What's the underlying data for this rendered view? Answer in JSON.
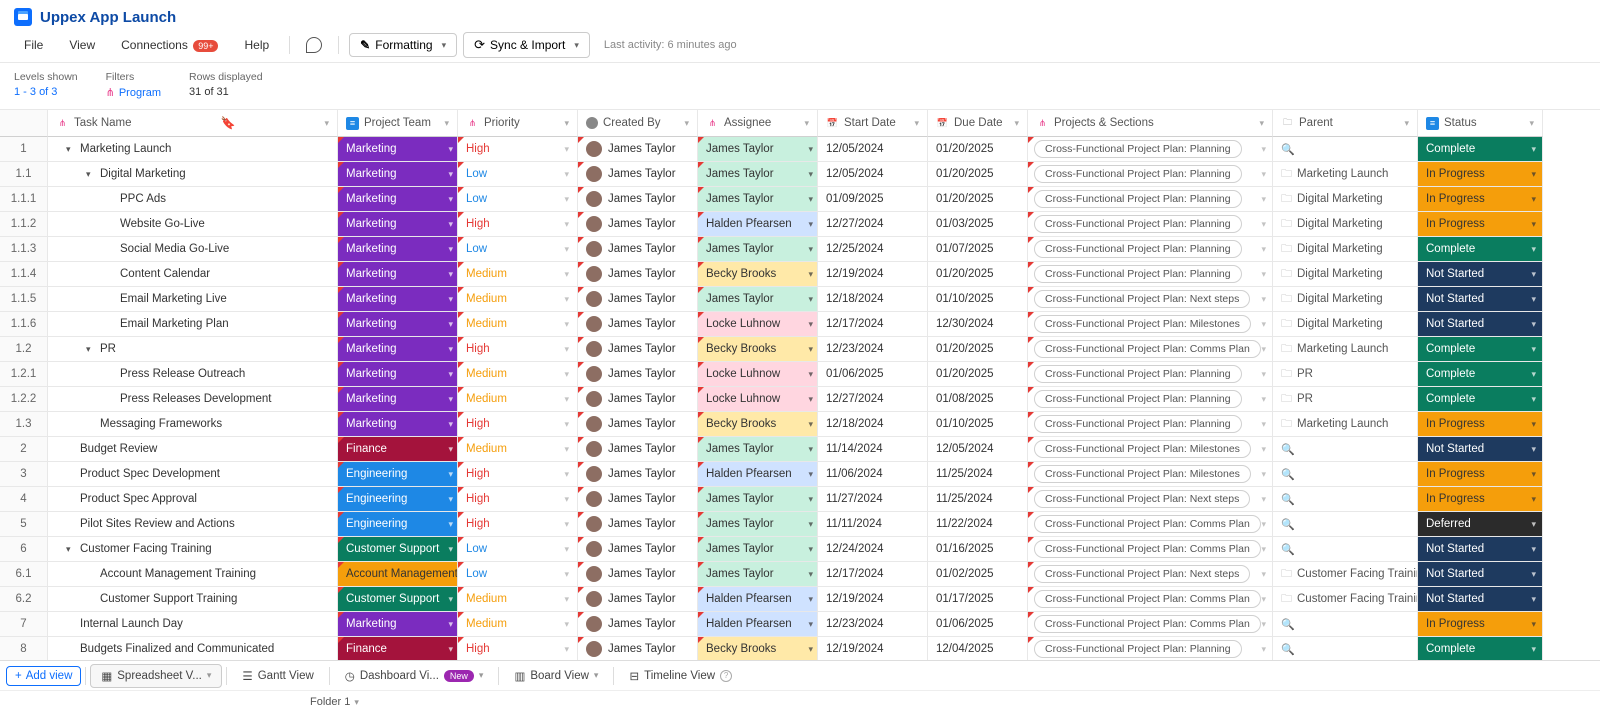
{
  "title": "Uppex App Launch",
  "menu": {
    "file": "File",
    "view": "View",
    "connections": "Connections",
    "connections_badge": "99+",
    "help": "Help",
    "formatting": "Formatting",
    "sync": "Sync & Import",
    "last_activity": "Last activity:  6 minutes ago"
  },
  "toolbar": {
    "levels_label": "Levels shown",
    "levels_value": "1 - 3 of 3",
    "filters_label": "Filters",
    "filters_value": "Program",
    "rows_label": "Rows displayed",
    "rows_value": "31 of 31"
  },
  "columns": {
    "task": "Task Name",
    "team": "Project Team",
    "priority": "Priority",
    "created": "Created By",
    "assignee": "Assignee",
    "start": "Start Date",
    "due": "Due Date",
    "projects": "Projects & Sections",
    "parent": "Parent",
    "status": "Status"
  },
  "team_colors": {
    "Marketing": "#7b2cbf",
    "Finance": "#a4133c",
    "Engineering": "#1e88e5",
    "Customer Support": "#0a7d5f",
    "Account Management": "#f59e0b"
  },
  "priority_colors": {
    "High": "#e53935",
    "Medium": "#f59e0b",
    "Low": "#1e88e5"
  },
  "assignee_colors": {
    "James Taylor": "#c8f0de",
    "Halden Pfearsen": "#cfe2ff",
    "Becky Brooks": "#ffe9a8",
    "Locke Luhnow": "#ffd6e0"
  },
  "status_colors": {
    "Complete": "#0a7d5f",
    "In Progress": "#f59e0b",
    "Not Started": "#1e3a5f",
    "Deferred": "#2b2b2b"
  },
  "rows": [
    {
      "num": "1",
      "indent": 0,
      "chev": "▾",
      "task": "Marketing Launch",
      "team": "Marketing",
      "priority": "High",
      "created": "James Taylor",
      "assignee": "James Taylor",
      "start": "12/05/2024",
      "due": "01/20/2025",
      "project": "Cross-Functional Project Plan: Planning",
      "parent": "",
      "status": "Complete"
    },
    {
      "num": "1.1",
      "indent": 1,
      "chev": "▾",
      "task": "Digital Marketing",
      "team": "Marketing",
      "priority": "Low",
      "created": "James Taylor",
      "assignee": "James Taylor",
      "start": "12/05/2024",
      "due": "01/20/2025",
      "project": "Cross-Functional Project Plan: Planning",
      "parent": "Marketing Launch",
      "status": "In Progress"
    },
    {
      "num": "1.1.1",
      "indent": 2,
      "chev": "",
      "task": "PPC Ads",
      "team": "Marketing",
      "priority": "Low",
      "created": "James Taylor",
      "assignee": "James Taylor",
      "start": "01/09/2025",
      "due": "01/20/2025",
      "project": "Cross-Functional Project Plan: Planning",
      "parent": "Digital Marketing",
      "status": "In Progress"
    },
    {
      "num": "1.1.2",
      "indent": 2,
      "chev": "",
      "task": "Website Go-Live",
      "team": "Marketing",
      "priority": "High",
      "created": "James Taylor",
      "assignee": "Halden Pfearsen",
      "start": "12/27/2024",
      "due": "01/03/2025",
      "project": "Cross-Functional Project Plan: Planning",
      "parent": "Digital Marketing",
      "status": "In Progress"
    },
    {
      "num": "1.1.3",
      "indent": 2,
      "chev": "",
      "task": "Social Media Go-Live",
      "team": "Marketing",
      "priority": "Low",
      "created": "James Taylor",
      "assignee": "James Taylor",
      "start": "12/25/2024",
      "due": "01/07/2025",
      "project": "Cross-Functional Project Plan: Planning",
      "parent": "Digital Marketing",
      "status": "Complete"
    },
    {
      "num": "1.1.4",
      "indent": 2,
      "chev": "",
      "task": "Content Calendar",
      "team": "Marketing",
      "priority": "Medium",
      "created": "James Taylor",
      "assignee": "Becky Brooks",
      "start": "12/19/2024",
      "due": "01/20/2025",
      "project": "Cross-Functional Project Plan: Planning",
      "parent": "Digital Marketing",
      "status": "Not Started"
    },
    {
      "num": "1.1.5",
      "indent": 2,
      "chev": "",
      "task": "Email Marketing Live",
      "team": "Marketing",
      "priority": "Medium",
      "created": "James Taylor",
      "assignee": "James Taylor",
      "start": "12/18/2024",
      "due": "01/10/2025",
      "project": "Cross-Functional Project Plan: Next steps",
      "parent": "Digital Marketing",
      "status": "Not Started"
    },
    {
      "num": "1.1.6",
      "indent": 2,
      "chev": "",
      "task": "Email Marketing Plan",
      "team": "Marketing",
      "priority": "Medium",
      "created": "James Taylor",
      "assignee": "Locke Luhnow",
      "start": "12/17/2024",
      "due": "12/30/2024",
      "project": "Cross-Functional Project Plan: Milestones",
      "parent": "Digital Marketing",
      "status": "Not Started"
    },
    {
      "num": "1.2",
      "indent": 1,
      "chev": "▾",
      "task": "PR",
      "team": "Marketing",
      "priority": "High",
      "created": "James Taylor",
      "assignee": "Becky Brooks",
      "start": "12/23/2024",
      "due": "01/20/2025",
      "project": "Cross-Functional Project Plan: Comms Plan",
      "parent": "Marketing Launch",
      "status": "Complete"
    },
    {
      "num": "1.2.1",
      "indent": 2,
      "chev": "",
      "task": "Press Release Outreach",
      "team": "Marketing",
      "priority": "Medium",
      "created": "James Taylor",
      "assignee": "Locke Luhnow",
      "start": "01/06/2025",
      "due": "01/20/2025",
      "project": "Cross-Functional Project Plan: Planning",
      "parent": "PR",
      "status": "Complete"
    },
    {
      "num": "1.2.2",
      "indent": 2,
      "chev": "",
      "task": "Press Releases Development",
      "team": "Marketing",
      "priority": "Medium",
      "created": "James Taylor",
      "assignee": "Locke Luhnow",
      "start": "12/27/2024",
      "due": "01/08/2025",
      "project": "Cross-Functional Project Plan: Planning",
      "parent": "PR",
      "status": "Complete"
    },
    {
      "num": "1.3",
      "indent": 1,
      "chev": "",
      "task": "Messaging Frameworks",
      "team": "Marketing",
      "priority": "High",
      "created": "James Taylor",
      "assignee": "Becky Brooks",
      "start": "12/18/2024",
      "due": "01/10/2025",
      "project": "Cross-Functional Project Plan: Planning",
      "parent": "Marketing Launch",
      "status": "In Progress"
    },
    {
      "num": "2",
      "indent": 0,
      "chev": "",
      "task": "Budget Review",
      "team": "Finance",
      "priority": "Medium",
      "created": "James Taylor",
      "assignee": "James Taylor",
      "start": "11/14/2024",
      "due": "12/05/2024",
      "project": "Cross-Functional Project Plan: Milestones",
      "parent": "",
      "status": "Not Started"
    },
    {
      "num": "3",
      "indent": 0,
      "chev": "",
      "task": "Product Spec Development",
      "team": "Engineering",
      "priority": "High",
      "created": "James Taylor",
      "assignee": "Halden Pfearsen",
      "start": "11/06/2024",
      "due": "11/25/2024",
      "project": "Cross-Functional Project Plan: Milestones",
      "parent": "",
      "status": "In Progress"
    },
    {
      "num": "4",
      "indent": 0,
      "chev": "",
      "task": "Product Spec Approval",
      "team": "Engineering",
      "priority": "High",
      "created": "James Taylor",
      "assignee": "James Taylor",
      "start": "11/27/2024",
      "due": "11/25/2024",
      "project": "Cross-Functional Project Plan: Next steps",
      "parent": "",
      "status": "In Progress"
    },
    {
      "num": "5",
      "indent": 0,
      "chev": "",
      "task": "Pilot Sites Review and Actions",
      "team": "Engineering",
      "priority": "High",
      "created": "James Taylor",
      "assignee": "James Taylor",
      "start": "11/11/2024",
      "due": "11/22/2024",
      "project": "Cross-Functional Project Plan: Comms Plan",
      "parent": "",
      "status": "Deferred"
    },
    {
      "num": "6",
      "indent": 0,
      "chev": "▾",
      "task": "Customer Facing Training",
      "team": "Customer Support",
      "priority": "Low",
      "created": "James Taylor",
      "assignee": "James Taylor",
      "start": "12/24/2024",
      "due": "01/16/2025",
      "project": "Cross-Functional Project Plan: Comms Plan",
      "parent": "",
      "status": "Not Started"
    },
    {
      "num": "6.1",
      "indent": 1,
      "chev": "",
      "task": "Account Management Training",
      "team": "Account Management",
      "priority": "Low",
      "created": "James Taylor",
      "assignee": "James Taylor",
      "start": "12/17/2024",
      "due": "01/02/2025",
      "project": "Cross-Functional Project Plan: Next steps",
      "parent": "Customer Facing Training",
      "status": "Not Started"
    },
    {
      "num": "6.2",
      "indent": 1,
      "chev": "",
      "task": "Customer Support Training",
      "team": "Customer Support",
      "priority": "Medium",
      "created": "James Taylor",
      "assignee": "Halden Pfearsen",
      "start": "12/19/2024",
      "due": "01/17/2025",
      "project": "Cross-Functional Project Plan: Comms Plan",
      "parent": "Customer Facing Training",
      "status": "Not Started"
    },
    {
      "num": "7",
      "indent": 0,
      "chev": "",
      "task": "Internal Launch Day",
      "team": "Marketing",
      "priority": "Medium",
      "created": "James Taylor",
      "assignee": "Halden Pfearsen",
      "start": "12/23/2024",
      "due": "01/06/2025",
      "project": "Cross-Functional Project Plan: Comms Plan",
      "parent": "",
      "status": "In Progress"
    },
    {
      "num": "8",
      "indent": 0,
      "chev": "",
      "task": "Budgets Finalized and Communicated",
      "team": "Finance",
      "priority": "High",
      "created": "James Taylor",
      "assignee": "Becky Brooks",
      "start": "12/19/2024",
      "due": "12/04/2025",
      "project": "Cross-Functional Project Plan: Planning",
      "parent": "",
      "status": "Complete"
    }
  ],
  "red_tick_cols": [
    "team",
    "priority",
    "created",
    "assignee",
    "project"
  ],
  "tabs": {
    "add": "Add view",
    "spreadsheet": "Spreadsheet V...",
    "gantt": "Gantt View",
    "dashboard": "Dashboard Vi...",
    "dashboard_badge": "New",
    "board": "Board View",
    "timeline": "Timeline View"
  },
  "footer": {
    "folder": "Folder 1"
  }
}
